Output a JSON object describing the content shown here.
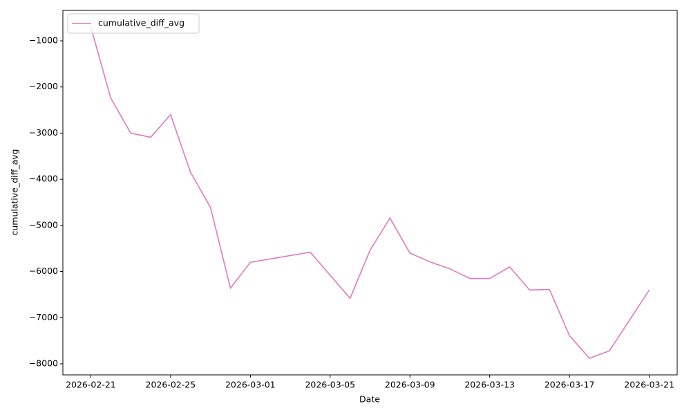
{
  "chart_data": {
    "type": "line",
    "xlabel": "Date",
    "ylabel": "cumulative_diff_avg",
    "x": [
      "2026-02-21",
      "2026-02-22",
      "2026-02-23",
      "2026-02-24",
      "2026-02-25",
      "2026-02-26",
      "2026-02-27",
      "2026-02-28",
      "2026-03-01",
      "2026-03-04",
      "2026-03-06",
      "2026-03-07",
      "2026-03-08",
      "2026-03-09",
      "2026-03-10",
      "2026-03-11",
      "2026-03-12",
      "2026-03-13",
      "2026-03-14",
      "2026-03-15",
      "2026-03-16",
      "2026-03-17",
      "2026-03-18",
      "2026-03-19",
      "2026-03-21"
    ],
    "series": [
      {
        "name": "cumulative_diff_avg",
        "color": "#e377c2",
        "values": [
          -700,
          -2240,
          -3000,
          -3090,
          -2600,
          -3850,
          -4610,
          -6360,
          -5800,
          -5580,
          -6580,
          -5540,
          -4840,
          -5600,
          -5790,
          -5940,
          -6150,
          -6150,
          -5900,
          -6400,
          -6390,
          -7390,
          -7880,
          -7720,
          -6400
        ]
      }
    ],
    "xlim": [
      "2026-02-19T14:24:00Z",
      "2026-03-22T09:36:00Z"
    ],
    "xticks": [
      "2026-02-21",
      "2026-02-25",
      "2026-03-01",
      "2026-03-05",
      "2026-03-09",
      "2026-03-13",
      "2026-03-17",
      "2026-03-21"
    ],
    "ylim": [
      -8240,
      -340
    ],
    "yticks": [
      {
        "value": -1000,
        "label": "−1000"
      },
      {
        "value": -2000,
        "label": "−2000"
      },
      {
        "value": -3000,
        "label": "−3000"
      },
      {
        "value": -4000,
        "label": "−4000"
      },
      {
        "value": -5000,
        "label": "−5000"
      },
      {
        "value": -6000,
        "label": "−6000"
      },
      {
        "value": -7000,
        "label": "−7000"
      },
      {
        "value": -8000,
        "label": "−8000"
      }
    ],
    "legend": "upper left",
    "grid": false
  }
}
